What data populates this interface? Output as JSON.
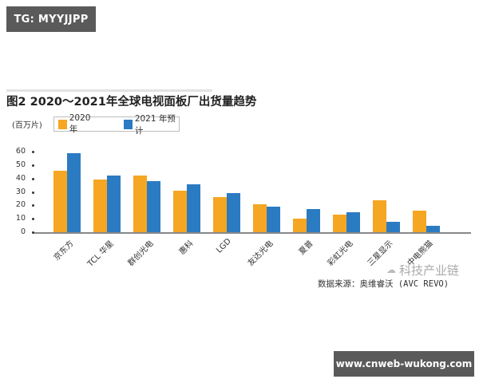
{
  "badges": {
    "top": "TG: MYYJJPP",
    "bottom": "www.cnweb-wukong.com"
  },
  "colors": {
    "series_2020": "#f5a623",
    "series_2021": "#2b7bc2",
    "axis": "#888888"
  },
  "chart_data": {
    "type": "bar",
    "title": "图2  2020～2021年全球电视面板厂出货量趋势",
    "ylabel": "(百万片)",
    "xlabel": "",
    "ylim": [
      0,
      60
    ],
    "yticks": [
      0,
      10,
      20,
      30,
      40,
      50,
      60
    ],
    "grid": false,
    "legend_position": "top-left",
    "categories": [
      "京东方",
      "TCL 华星",
      "群创光电",
      "惠科",
      "LGD",
      "友达光电",
      "夏普",
      "彩虹光电",
      "三星显示",
      "中电熊猫"
    ],
    "series": [
      {
        "name": "2020 年",
        "color": "#f5a623",
        "values": [
          46,
          39,
          42,
          31,
          26,
          21,
          10,
          13,
          24,
          16
        ]
      },
      {
        "name": "2021 年预计",
        "color": "#2b7bc2",
        "values": [
          59,
          42,
          38,
          36,
          29,
          19,
          17,
          15,
          8,
          5
        ]
      }
    ],
    "annotations": [
      "数据来源：奥维睿沃 (AVC REVO)",
      "科技产业链"
    ]
  },
  "legend": {
    "items": [
      "2020 年",
      "2021 年预计"
    ]
  },
  "source_note": "数据来源：奥维睿沃 (AVC REVO)",
  "watermark": "科技产业链"
}
